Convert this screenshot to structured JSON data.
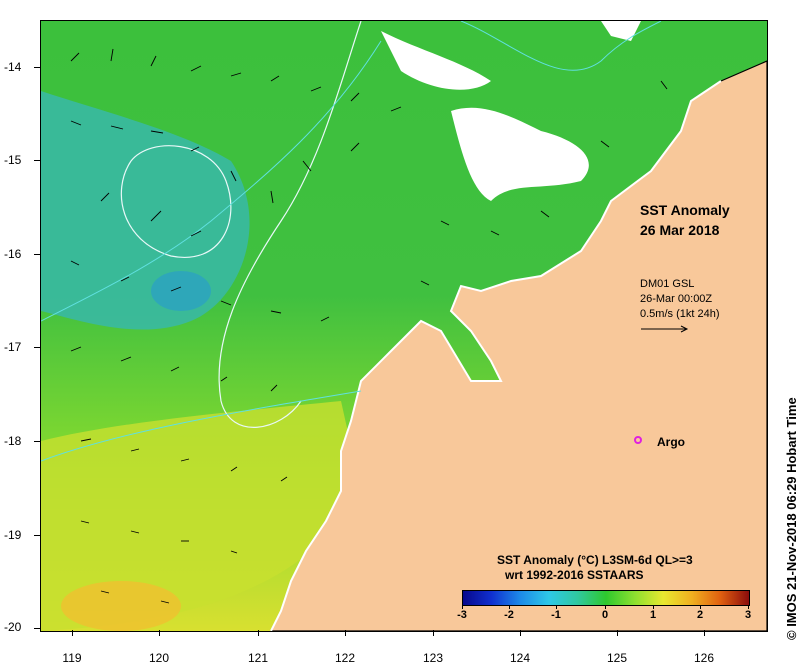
{
  "map": {
    "title_line1": "SST Anomaly",
    "title_line2": "26 Mar 2018",
    "vector_info": {
      "source": "DM01 GSL",
      "time": "26-Mar 00:00Z",
      "scale": "0.5m/s (1kt 24h)"
    },
    "argo_label": "Argo",
    "y_axis_labels": [
      "-14",
      "-15",
      "-16",
      "-17",
      "-18",
      "-19",
      "-20"
    ],
    "x_axis_labels": [
      "119",
      "120",
      "121",
      "122",
      "123",
      "124",
      "125",
      "126"
    ],
    "legend": {
      "title_line1": "SST Anomaly (°C) L3SM-6d QL>=3",
      "title_line2": "wrt 1992-2016 SSTAARS",
      "ticks": [
        "-3",
        "-2",
        "-1",
        "0",
        "1",
        "2",
        "3"
      ]
    },
    "copyright": "© IMOS 21-Nov-2018 06:29 Hobart Time",
    "colors": {
      "land": "#f8c89a",
      "ocean_mid": "#3fbf3f",
      "anomaly_warm": "#e8e830",
      "anomaly_cool": "#30b8b0",
      "argo": "#e020e0"
    }
  }
}
